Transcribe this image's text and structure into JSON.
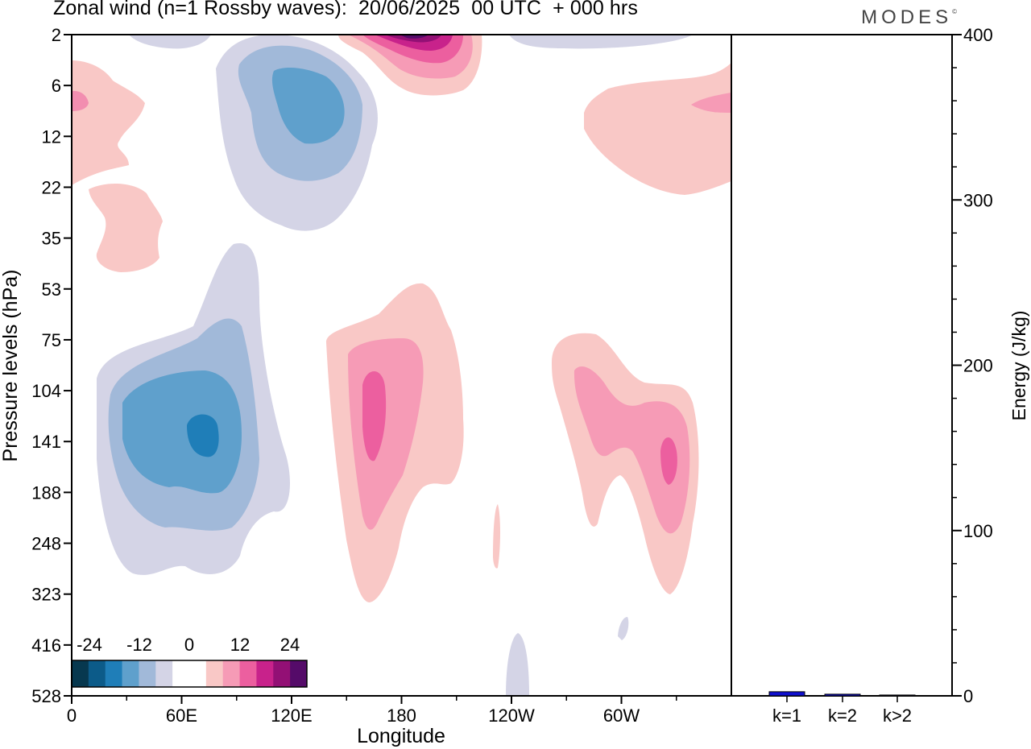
{
  "figure": {
    "title": "Zonal wind (n=1 Rossby waves):  20/06/2025  00 UTC  + 000 hrs",
    "brand": "MODES",
    "brand_mark": "©"
  },
  "chart_data": [
    {
      "type": "heatmap",
      "xlabel": "Longitude",
      "ylabel": "Pressure levels (hPa)",
      "x_ticks": [
        "0",
        "60E",
        "120E",
        "180",
        "120W",
        "60W"
      ],
      "y_ticks": [
        "2",
        "6",
        "12",
        "22",
        "35",
        "53",
        "75",
        "104",
        "141",
        "188",
        "248",
        "323",
        "416",
        "528"
      ],
      "y_scale": "log-like (inverted, 2 hPa top to 528 hPa bottom)",
      "colorbar": {
        "labels": [
          "-24",
          "-12",
          "0",
          "12",
          "24"
        ],
        "colors": [
          "#07384f",
          "#0c5b89",
          "#1f7eb8",
          "#5fa0cc",
          "#a1b9d9",
          "#d4d4e6",
          "#ffffff",
          "#ffffff",
          "#f9c8c6",
          "#f69bb6",
          "#ec5f9f",
          "#c8228b",
          "#931075",
          "#550b69"
        ],
        "placement": "bottom-left inset"
      },
      "features": [
        {
          "sign": "negative",
          "lon_center": "72E",
          "p_center_hPa": 141,
          "peak": -18
        },
        {
          "sign": "negative",
          "lon_center": "130E",
          "p_center_hPa": 8,
          "peak": -15
        },
        {
          "sign": "positive",
          "lon_center": "165E",
          "p_center_hPa": 141,
          "peak": 15
        },
        {
          "sign": "positive",
          "lon_center": "75W",
          "p_center_hPa": 150,
          "peak": 15
        },
        {
          "sign": "positive",
          "lon_center": "170W",
          "p_center_hPa": 2,
          "peak": 24
        },
        {
          "sign": "positive",
          "lon_center": "20W",
          "p_center_hPa": 12,
          "peak": 6
        },
        {
          "sign": "positive",
          "lon_center": "15E",
          "p_center_hPa": 20,
          "peak": 9
        }
      ]
    },
    {
      "type": "bar",
      "categories": [
        "k=1",
        "k=2",
        "k>2"
      ],
      "values": [
        2.5,
        1.0,
        0.5
      ],
      "ylabel": "Energy (J/kg)",
      "ylim": [
        0,
        400
      ],
      "y_ticks": [
        "0",
        "100",
        "200",
        "300",
        "400"
      ],
      "bar_color": "#1010d0"
    }
  ]
}
